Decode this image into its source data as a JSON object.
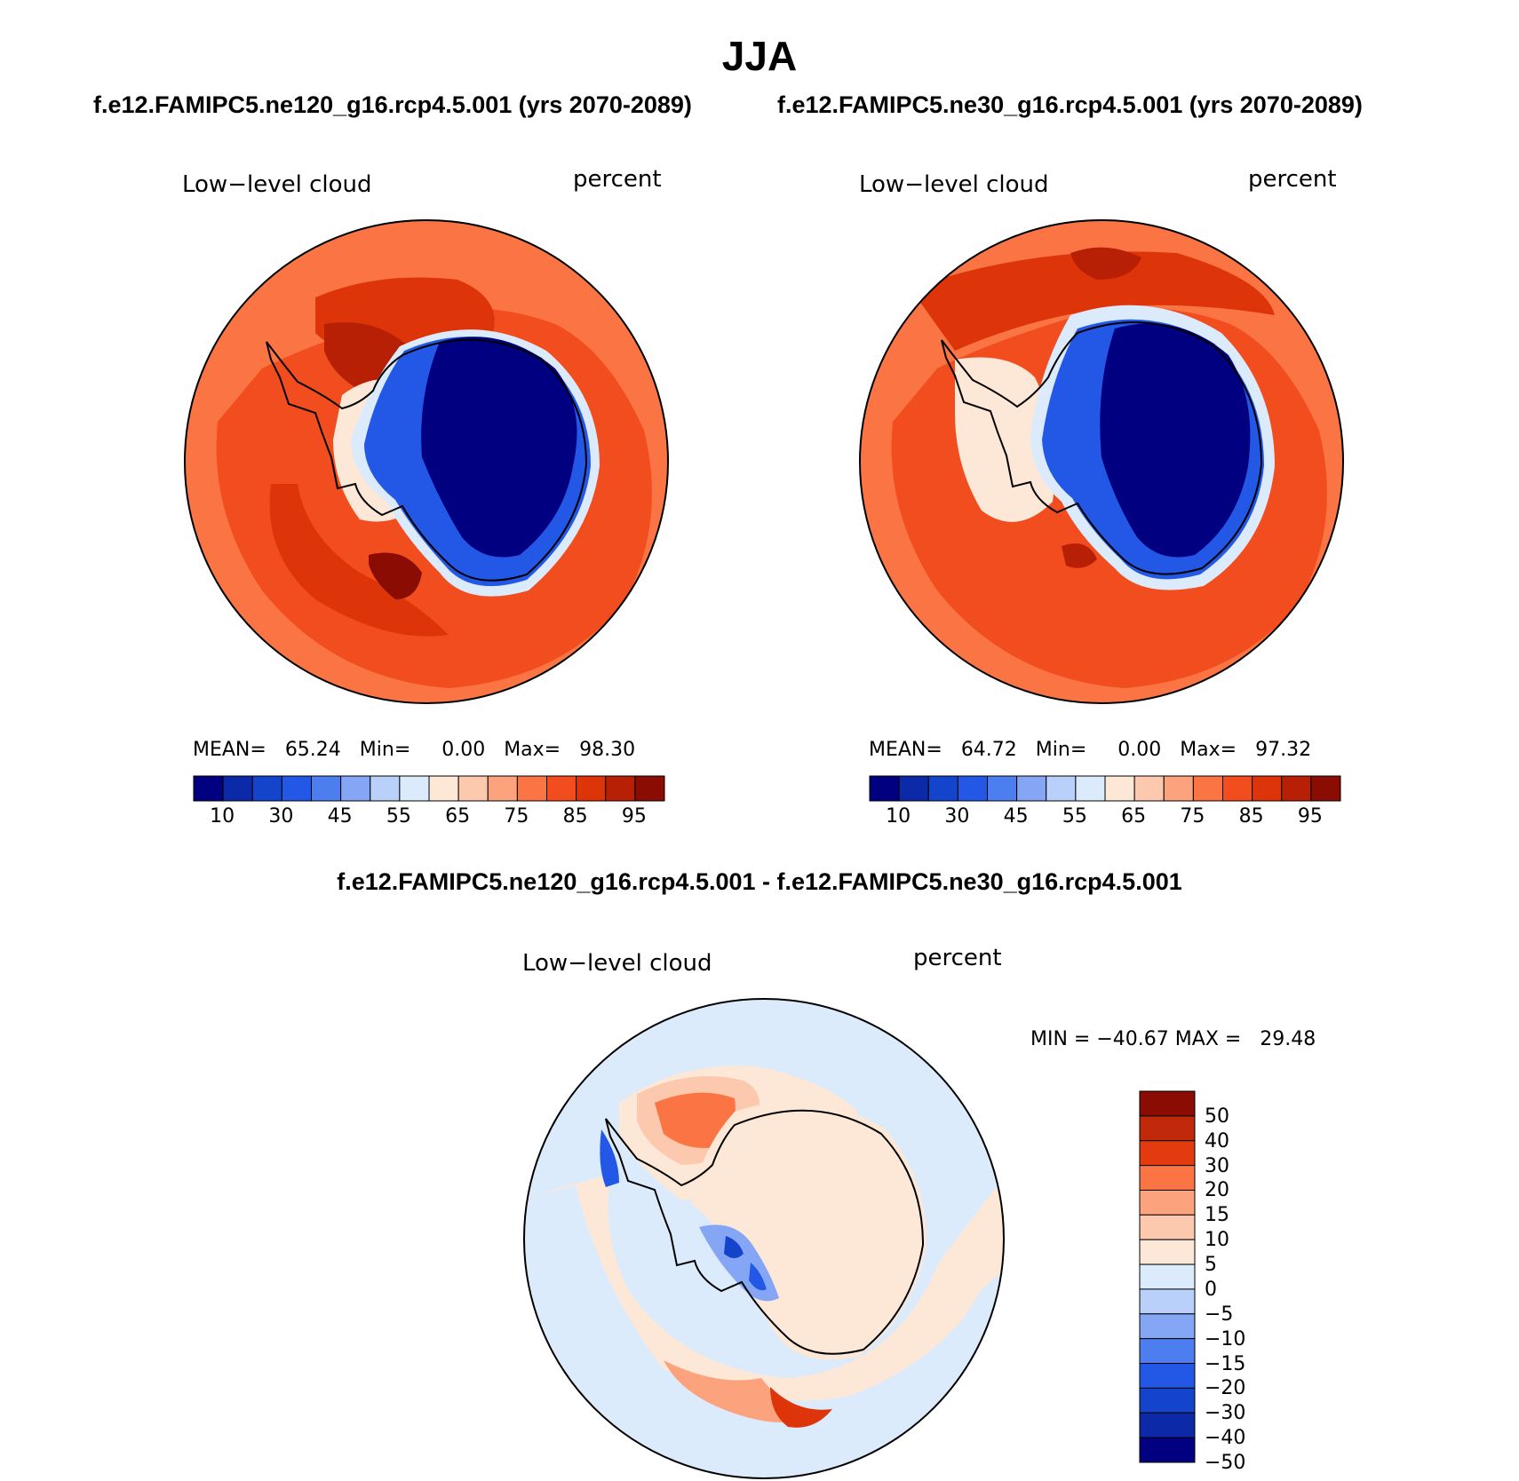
{
  "figure": {
    "title": "JJA",
    "diff_title": "f.e12.FAMIPC5.ne120_g16.rcp4.5.001 - f.e12.FAMIPC5.ne30_g16.rcp4.5.001"
  },
  "panels": [
    {
      "case_title": "f.e12.FAMIPC5.ne120_g16.rcp4.5.001 (yrs 2070-2089)",
      "variable": "Low−level cloud",
      "units": "percent",
      "stats": {
        "mean_label": "MEAN=",
        "mean": "65.24",
        "min_label": "Min=",
        "min": "0.00",
        "max_label": "Max=",
        "max": "98.30"
      }
    },
    {
      "case_title": "f.e12.FAMIPC5.ne30_g16.rcp4.5.001 (yrs 2070-2089)",
      "variable": "Low−level cloud",
      "units": "percent",
      "stats": {
        "mean_label": "MEAN=",
        "mean": "64.72",
        "min_label": "Min=",
        "min": "0.00",
        "max_label": "Max=",
        "max": "97.32"
      }
    }
  ],
  "diff_panel": {
    "variable": "Low−level cloud",
    "units": "percent",
    "stats": {
      "min_label": "MIN =",
      "min": "−40.67",
      "max_label": "MAX =",
      "max": "29.48"
    }
  },
  "colorbar": {
    "colors": [
      "#000080",
      "#0c2aa8",
      "#1444cc",
      "#2358e6",
      "#4d7ef0",
      "#85a6f5",
      "#b9d0fb",
      "#dcebfc",
      "#fde7d6",
      "#fcc9ae",
      "#fca27c",
      "#fb7443",
      "#f24d1e",
      "#dd3409",
      "#b82006",
      "#8a0c03"
    ],
    "tick_labels": [
      "10",
      "30",
      "45",
      "55",
      "65",
      "75",
      "85",
      "95"
    ]
  },
  "diff_colorbar": {
    "colors": [
      "#8a0c03",
      "#c02a0a",
      "#e33a10",
      "#fb7443",
      "#fca27c",
      "#fcc9ae",
      "#fde7d6",
      "#dcebfc",
      "#b9d0fb",
      "#85a6f5",
      "#4d7ef0",
      "#2358e6",
      "#1444cc",
      "#0c2aa8",
      "#000080"
    ],
    "tick_labels": [
      "50",
      "40",
      "30",
      "20",
      "15",
      "10",
      "5",
      "0",
      "−5",
      "−10",
      "−15",
      "−20",
      "−30",
      "−40",
      "−50"
    ]
  }
}
